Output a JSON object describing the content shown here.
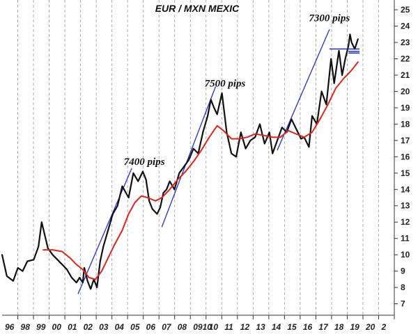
{
  "chart_data": {
    "type": "line",
    "title": "EUR / MXN MEXIC",
    "xlabel": "",
    "ylabel": "",
    "xlim": [
      1996,
      2020.8
    ],
    "ylim": [
      6.3,
      25.6
    ],
    "y_ticks": [
      7,
      8,
      9,
      10,
      11,
      12,
      13,
      14,
      15,
      16,
      17,
      18,
      19,
      20,
      21,
      22,
      23,
      24,
      25
    ],
    "x_tick_labels": [
      "96",
      "98",
      "99",
      "00",
      "01",
      "02",
      "03",
      "04",
      "05",
      "06",
      "07",
      "08",
      "0910",
      "10",
      "11",
      "12",
      "13",
      "14",
      "15",
      "16",
      "17",
      "18",
      "19",
      "20",
      "2"
    ],
    "grid": "vertical dashed",
    "y_axis_side": "right",
    "series": [
      {
        "color": "#111111",
        "style": "price",
        "x": [
          1996.0,
          1996.3,
          1996.7,
          1997.0,
          1997.3,
          1997.6,
          1998.0,
          1998.3,
          1998.5,
          1998.7,
          1998.9,
          1999.2,
          1999.5,
          1999.8,
          2000.1,
          2000.4,
          2000.7,
          2000.9,
          2001.1,
          2001.2,
          2001.4,
          2001.6,
          2001.8,
          2002.0,
          2002.2,
          2002.4,
          2002.7,
          2003.0,
          2003.3,
          2003.6,
          2004.0,
          2004.3,
          2004.6,
          2004.9,
          2005.1,
          2005.3,
          2005.5,
          2005.8,
          2006.0,
          2006.2,
          2006.4,
          2006.6,
          2006.9,
          2007.2,
          2007.5,
          2007.8,
          2008.1,
          2008.4,
          2008.7,
          2009.0,
          2009.2,
          2009.4,
          2009.6,
          2009.9,
          2010.2,
          2010.5,
          2010.8,
          2011.1,
          2011.4,
          2011.7,
          2012.0,
          2012.3,
          2012.6,
          2012.9,
          2013.1,
          2013.4,
          2013.7,
          2014.0,
          2014.3,
          2014.6,
          2014.9,
          2015.1,
          2015.4,
          2015.6,
          2015.9,
          2016.2,
          2016.5,
          2016.8,
          2017.0,
          2017.3,
          2017.5,
          2017.7,
          2017.9,
          2018.0,
          2018.1,
          2018.3,
          2018.5
        ],
        "values": [
          10.0,
          8.7,
          8.4,
          9.2,
          9.0,
          9.6,
          9.7,
          10.5,
          12.0,
          11.2,
          10.4,
          10.0,
          9.7,
          9.4,
          9.1,
          8.6,
          8.3,
          8.6,
          8.3,
          9.2,
          8.4,
          7.9,
          8.5,
          8.0,
          9.6,
          10.5,
          11.5,
          12.5,
          13.0,
          14.2,
          13.5,
          15.0,
          14.5,
          15.1,
          14.6,
          13.3,
          12.8,
          12.5,
          12.9,
          13.8,
          14.0,
          14.5,
          14.0,
          15.0,
          15.4,
          15.8,
          16.5,
          16.2,
          17.5,
          18.5,
          19.5,
          19.0,
          18.6,
          19.9,
          17.5,
          16.2,
          16.0,
          17.5,
          16.5,
          17.0,
          17.2,
          18.0,
          16.8,
          17.5,
          16.2,
          17.0,
          17.8,
          17.5,
          18.3,
          17.7,
          17.1,
          17.2,
          16.6,
          18.5,
          18.0,
          20.0,
          19.2,
          22.0,
          20.5,
          22.5,
          21.0,
          22.0,
          22.8,
          23.5,
          23.0,
          22.6,
          23.2
        ]
      },
      {
        "color": "#e0241c",
        "style": "moving-average",
        "x": [
          1998.6,
          1999.2,
          1999.8,
          2000.3,
          2000.7,
          2001.1,
          2001.5,
          2001.9,
          2002.3,
          2002.7,
          2003.1,
          2003.6,
          2004.0,
          2004.4,
          2004.8,
          2005.2,
          2005.7,
          2006.1,
          2006.6,
          2007.1,
          2007.6,
          2008.1,
          2008.6,
          2009.1,
          2009.6,
          2010.0,
          2010.5,
          2011.0,
          2011.5,
          2012.0,
          2012.6,
          2013.1,
          2013.6,
          2014.1,
          2014.6,
          2015.1,
          2015.6,
          2016.1,
          2016.6,
          2017.1,
          2017.6,
          2018.1,
          2018.5
        ],
        "values": [
          10.3,
          10.3,
          10.2,
          9.8,
          9.4,
          9.1,
          8.6,
          8.5,
          9.0,
          9.8,
          10.6,
          11.5,
          12.5,
          13.2,
          13.6,
          13.5,
          13.3,
          13.5,
          14.0,
          14.6,
          15.1,
          15.7,
          16.4,
          17.2,
          17.9,
          17.6,
          17.1,
          17.1,
          17.2,
          17.4,
          17.3,
          17.2,
          17.2,
          17.6,
          17.4,
          17.2,
          17.5,
          18.3,
          19.2,
          20.2,
          20.8,
          21.3,
          21.8
        ]
      }
    ],
    "trendlines": [
      {
        "x": [
          2000.8,
          2004.2
        ],
        "values": [
          7.6,
          15.3
        ]
      },
      {
        "x": [
          2006.1,
          2009.5
        ],
        "values": [
          11.7,
          20.3
        ]
      },
      {
        "x": [
          2013.4,
          2016.7
        ],
        "values": [
          16.4,
          23.8
        ]
      }
    ],
    "resistance_lines": [
      {
        "x": [
          2016.7,
          2018.6
        ],
        "values": [
          22.6,
          22.6
        ]
      },
      {
        "x": [
          2017.9,
          2018.6
        ],
        "values": [
          22.45,
          22.45
        ]
      },
      {
        "x": [
          2017.9,
          2018.6
        ],
        "values": [
          22.35,
          22.35
        ]
      }
    ],
    "annotations": [
      {
        "text": "7400 pips",
        "x": 2003.7,
        "y": 15.5
      },
      {
        "text": "7500 pips",
        "x": 2008.8,
        "y": 20.3
      },
      {
        "text": "7300 pips",
        "x": 2015.4,
        "y": 24.3
      }
    ]
  }
}
